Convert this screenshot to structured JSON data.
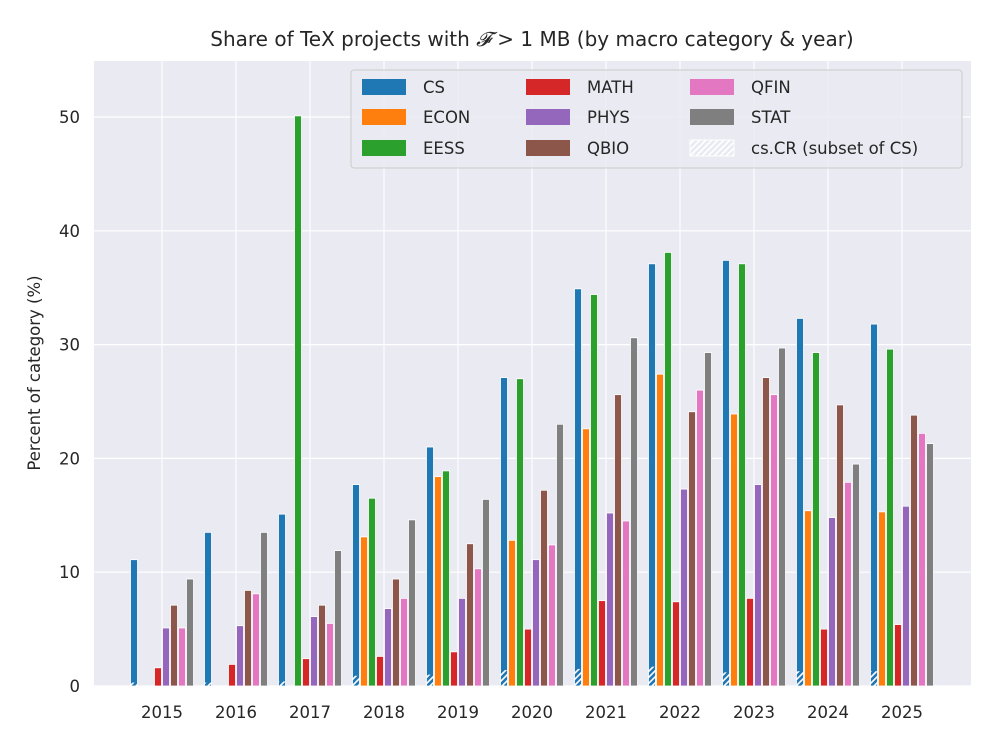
{
  "chart_data": {
    "type": "bar",
    "title_prefix": "Share of TeX projects with",
    "title_symbol": "𝓕",
    "title_suffix": "> 1 MB (by macro category & year)",
    "xlabel": "",
    "ylabel": "Percent of category (%)",
    "ylim": [
      0,
      55
    ],
    "yticks": [
      0,
      10,
      20,
      30,
      40,
      50
    ],
    "grid": true,
    "legend_position": "upper-right",
    "categories": [
      "2015",
      "2016",
      "2017",
      "2018",
      "2019",
      "2020",
      "2021",
      "2022",
      "2023",
      "2024",
      "2025"
    ],
    "series": [
      {
        "name": "CS",
        "color": "#1f77b4",
        "values": [
          11.1,
          13.5,
          15.1,
          17.7,
          21.0,
          27.1,
          34.9,
          37.1,
          37.4,
          32.3,
          31.8
        ]
      },
      {
        "name": "ECON",
        "color": "#ff7f0e",
        "values": [
          0,
          0,
          0,
          13.1,
          18.4,
          12.8,
          22.6,
          27.4,
          23.9,
          15.4,
          15.3
        ]
      },
      {
        "name": "EESS",
        "color": "#2ca02c",
        "values": [
          0,
          0,
          50.1,
          16.5,
          18.9,
          27.0,
          34.4,
          38.1,
          37.1,
          29.3,
          29.6
        ]
      },
      {
        "name": "MATH",
        "color": "#d62728",
        "values": [
          1.6,
          1.9,
          2.4,
          2.6,
          3.0,
          5.0,
          7.5,
          7.4,
          7.7,
          5.0,
          5.4
        ]
      },
      {
        "name": "PHYS",
        "color": "#9467bd",
        "values": [
          5.1,
          5.3,
          6.1,
          6.8,
          7.7,
          11.1,
          15.2,
          17.3,
          17.7,
          14.8,
          15.8
        ]
      },
      {
        "name": "QBIO",
        "color": "#8c564b",
        "values": [
          7.1,
          8.4,
          7.1,
          9.4,
          12.5,
          17.2,
          25.6,
          24.1,
          27.1,
          24.7,
          23.8
        ]
      },
      {
        "name": "QFIN",
        "color": "#e377c2",
        "values": [
          5.1,
          8.1,
          5.5,
          7.7,
          10.3,
          12.4,
          14.5,
          26.0,
          25.6,
          17.9,
          22.2
        ]
      },
      {
        "name": "STAT",
        "color": "#7f7f7f",
        "values": [
          9.4,
          13.5,
          11.9,
          14.6,
          16.4,
          23.0,
          30.6,
          29.3,
          29.7,
          19.5,
          21.3
        ]
      }
    ],
    "overlay_series": {
      "name": "cs.CR (subset of CS)",
      "over": "CS",
      "values": [
        0.3,
        0.3,
        0.4,
        0.9,
        1.0,
        1.4,
        1.5,
        1.7,
        1.2,
        1.3,
        1.3
      ]
    },
    "legend_ncol": 3
  }
}
